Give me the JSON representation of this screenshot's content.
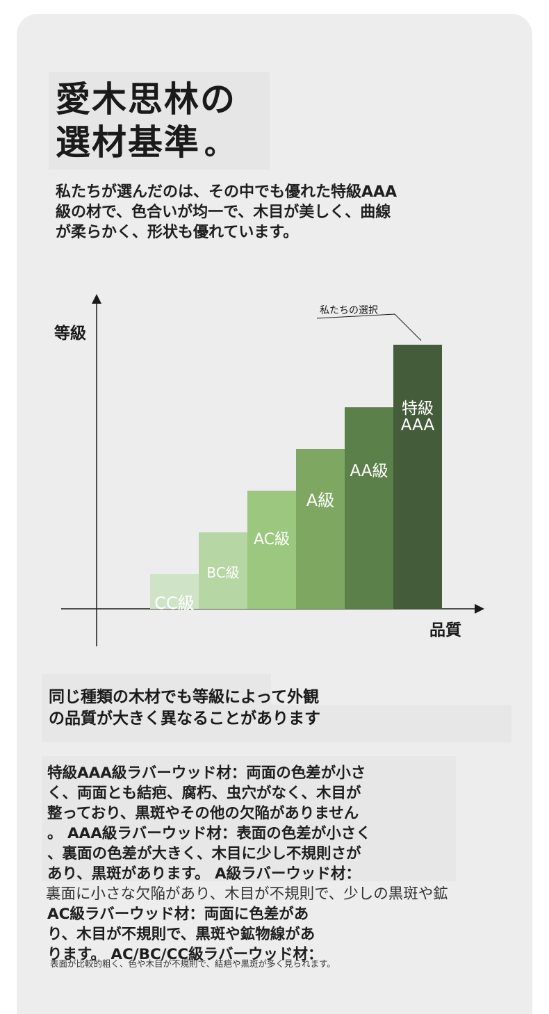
{
  "title": {
    "line1": "愛木思林の",
    "line2": "選材基準",
    "dot": "。"
  },
  "intro": {
    "line1": "私たちが選んだのは、その中でも優れた特級AAA",
    "line2": "級の材で、色合いが均一で、木目が美しく、曲線",
    "line3": "が柔らかく、形状も優れています。"
  },
  "chart_data": {
    "type": "bar",
    "categories": [
      "CC級",
      "BC級",
      "AC級",
      "A級",
      "AA級",
      "特級AAA"
    ],
    "values": [
      1,
      2,
      3,
      4,
      5,
      6
    ],
    "xlabel": "品質",
    "ylabel": "等級",
    "annotation": "私たちの選択",
    "colors": [
      "#cfe4c7",
      "#b6d6a3",
      "#9bc77e",
      "#7ea861",
      "#5c8049",
      "#445c39"
    ]
  },
  "block1": {
    "line1": "同じ種類の木材でも等級によって外観",
    "line2": "の品質が大きく異なることがあります"
  },
  "spec": {
    "line1": "特級AAA級ラバーウッド材：両面の色差が小さ",
    "line2": "く、両面とも結疤、腐朽、虫穴がなく、木目が",
    "line3": "整っており、黒斑やその他の欠陥がありません",
    "line4": "。 AAA級ラバーウッド材：表面の色差が小さく",
    "line5": "、裏面の色差が大きく、木目に少し不規則さが",
    "line6": "あり、黒斑があります。 A級ラバーウッド材：",
    "line7": "裏面に小さな欠陥があり、木目が不規則で、少しの黒斑や鉱",
    "line8": "AC級ラバーウッド材：両面に色差があ",
    "line9": "り、木目が不規則で、黒斑や鉱物線があ",
    "line10": "ります。 AC/BC/CC級ラバーウッド材：",
    "footnote": "表面が比較的粗く、色や木目が不規則で、結疤や黒斑が多く見られます。"
  }
}
